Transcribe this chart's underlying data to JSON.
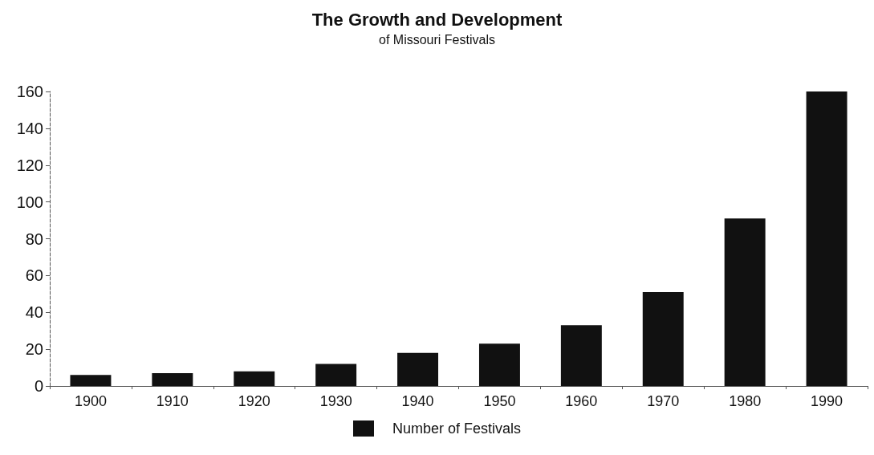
{
  "chart_data": {
    "type": "bar",
    "title": "The Growth and Development",
    "subtitle": "of Missouri Festivals",
    "categories": [
      "1900",
      "1910",
      "1920",
      "1930",
      "1940",
      "1950",
      "1960",
      "1970",
      "1980",
      "1990"
    ],
    "series": [
      {
        "name": "Number of Festivals",
        "color": "#111111",
        "values": [
          6,
          7,
          8,
          12,
          18,
          23,
          33,
          51,
          91,
          160
        ]
      }
    ],
    "ylim": [
      0,
      160
    ],
    "yticks": [
      0,
      20,
      40,
      60,
      80,
      100,
      120,
      140,
      160
    ],
    "grid": false,
    "legend": "bottom"
  }
}
